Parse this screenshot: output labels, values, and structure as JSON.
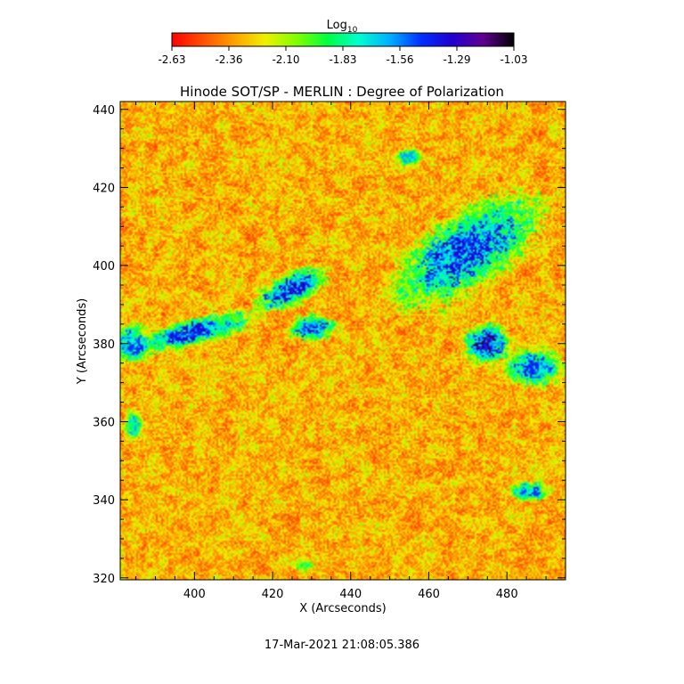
{
  "chart_data": {
    "type": "heatmap",
    "title": "Hinode SOT/SP - MERLIN : Degree of Polarization",
    "xlabel": "X (Arcseconds)",
    "ylabel": "Y (Arcseconds)",
    "xlim": [
      381,
      495
    ],
    "ylim": [
      319.5,
      442
    ],
    "xticks": [
      400,
      420,
      440,
      460,
      480
    ],
    "yticks": [
      320,
      340,
      360,
      380,
      400,
      420,
      440
    ],
    "colorbar": {
      "label_base": "Log",
      "label_sub": "10",
      "ticks": [
        "-2.63",
        "-2.36",
        "-2.10",
        "-1.83",
        "-1.56",
        "-1.29",
        "-1.03"
      ],
      "range": [
        -2.63,
        -1.03
      ],
      "colors": [
        "#ff0000",
        "#ff5000",
        "#ffa000",
        "#f0f000",
        "#80ff00",
        "#00ff40",
        "#00ffd0",
        "#00b0ff",
        "#0030ff",
        "#2000d0",
        "#600090",
        "#000000"
      ]
    },
    "polarization_regions": [
      {
        "x": 470,
        "y": 404,
        "rx": 26,
        "ry": 11,
        "level": -1.35,
        "rotation": -35
      },
      {
        "x": 475,
        "y": 380,
        "rx": 7,
        "ry": 6,
        "level": -1.1
      },
      {
        "x": 487,
        "y": 374,
        "rx": 9,
        "ry": 6,
        "level": -1.4
      },
      {
        "x": 425,
        "y": 394,
        "rx": 12,
        "ry": 5,
        "level": -1.3,
        "rotation": -25
      },
      {
        "x": 400,
        "y": 383,
        "rx": 20,
        "ry": 4,
        "level": -1.35,
        "rotation": -15
      },
      {
        "x": 430,
        "y": 384,
        "rx": 7,
        "ry": 4,
        "level": -1.25
      },
      {
        "x": 384,
        "y": 380,
        "rx": 6,
        "ry": 6,
        "level": -1.45
      },
      {
        "x": 455,
        "y": 428,
        "rx": 4,
        "ry": 3,
        "level": -1.6
      },
      {
        "x": 486,
        "y": 342,
        "rx": 6,
        "ry": 3,
        "level": -1.45
      },
      {
        "x": 384,
        "y": 359,
        "rx": 3,
        "ry": 5,
        "level": -1.6
      },
      {
        "x": 428,
        "y": 323,
        "rx": 4,
        "ry": 2,
        "level": -1.8
      }
    ],
    "footer": "17-Mar-2021 21:08:05.386"
  }
}
